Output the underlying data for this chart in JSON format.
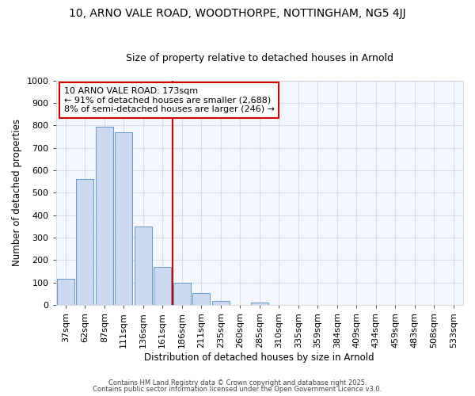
{
  "title": "10, ARNO VALE ROAD, WOODTHORPE, NOTTINGHAM, NG5 4JJ",
  "subtitle": "Size of property relative to detached houses in Arnold",
  "xlabel": "Distribution of detached houses by size in Arnold",
  "ylabel": "Number of detached properties",
  "background_color": "#f5f7ff",
  "bar_color": "#ccd9f0",
  "bar_edge_color": "#6699cc",
  "categories": [
    "37sqm",
    "62sqm",
    "87sqm",
    "111sqm",
    "136sqm",
    "161sqm",
    "186sqm",
    "211sqm",
    "235sqm",
    "260sqm",
    "285sqm",
    "310sqm",
    "335sqm",
    "359sqm",
    "384sqm",
    "409sqm",
    "434sqm",
    "459sqm",
    "483sqm",
    "508sqm",
    "533sqm"
  ],
  "values": [
    115,
    560,
    795,
    770,
    350,
    168,
    100,
    53,
    18,
    0,
    10,
    0,
    0,
    0,
    0,
    0,
    0,
    0,
    0,
    0,
    0
  ],
  "ylim": [
    0,
    1000
  ],
  "yticks": [
    0,
    100,
    200,
    300,
    400,
    500,
    600,
    700,
    800,
    900,
    1000
  ],
  "vline_x": 5.5,
  "vline_color": "#cc0000",
  "annotation_text": "10 ARNO VALE ROAD: 173sqm\n← 91% of detached houses are smaller (2,688)\n8% of semi-detached houses are larger (246) →",
  "annotation_box_facecolor": "#ffffff",
  "annotation_box_edgecolor": "#cc0000",
  "footer_line1": "Contains HM Land Registry data © Crown copyright and database right 2025.",
  "footer_line2": "Contains public sector information licensed under the Open Government Licence v3.0.",
  "grid_color": "#d4dced",
  "title_fontsize": 10,
  "subtitle_fontsize": 9,
  "xlabel_fontsize": 8.5,
  "ylabel_fontsize": 8.5,
  "tick_fontsize": 8,
  "annotation_fontsize": 8,
  "footer_fontsize": 6
}
